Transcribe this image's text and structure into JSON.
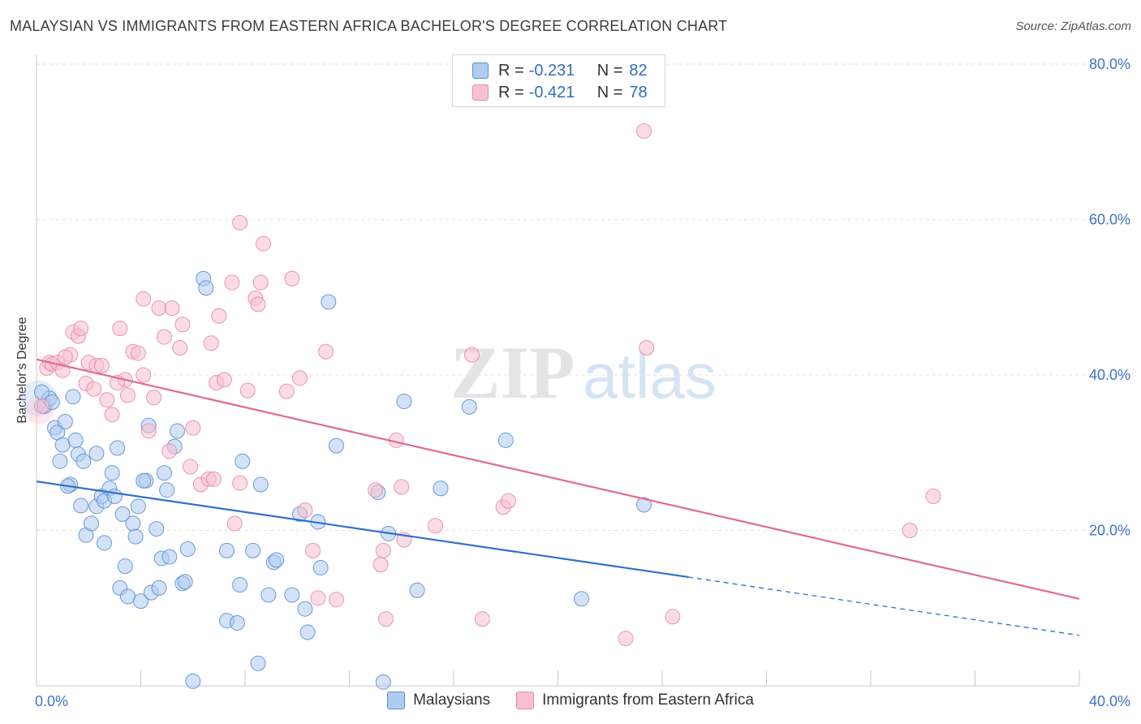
{
  "title": "MALAYSIAN VS IMMIGRANTS FROM EASTERN AFRICA BACHELOR'S DEGREE CORRELATION CHART",
  "source": "Source: ZipAtlas.com",
  "watermark": {
    "zip": "ZIP",
    "atlas": "atlas"
  },
  "colors": {
    "blue_fill": "#aecbf0",
    "blue_stroke": "#5b8fd6",
    "blue_line": "#2f6fd0",
    "pink_fill": "#f7c0d0",
    "pink_stroke": "#e88aa8",
    "pink_line": "#e06a93",
    "tick_label": "#3d74c6",
    "grid": "#e3e3e3"
  },
  "legend": {
    "rows": [
      {
        "r_label": "R =",
        "r_value": "-0.231",
        "n_label": "N =",
        "n_value": "82"
      },
      {
        "r_label": "R =",
        "r_value": "-0.421",
        "n_label": "N =",
        "n_value": "78"
      }
    ],
    "series_names": [
      "Malaysians",
      "Immigrants from Eastern Africa"
    ]
  },
  "chart_data": {
    "type": "scatter",
    "title": "MALAYSIAN VS IMMIGRANTS FROM EASTERN AFRICA BACHELOR'S DEGREE CORRELATION CHART",
    "xlabel": "",
    "ylabel": "Bachelor's Degree",
    "xlim": [
      0,
      40
    ],
    "ylim": [
      0,
      80
    ],
    "x_tick_labels": [
      "0.0%",
      "40.0%"
    ],
    "y_tick_values": [
      20,
      40,
      60,
      80
    ],
    "y_tick_labels": [
      "20.0%",
      "40.0%",
      "60.0%",
      "80.0%"
    ],
    "grid": true,
    "legend_position": "top-center",
    "series": [
      {
        "name": "Malaysians",
        "r": -0.231,
        "n": 82,
        "trend": {
          "x": [
            0,
            25,
            40
          ],
          "y": [
            26.3,
            14.0,
            6.5
          ],
          "solid_until": 25
        },
        "points": [
          [
            0.3,
            36.0
          ],
          [
            0.5,
            37.0
          ],
          [
            0.6,
            36.5
          ],
          [
            0.7,
            33.2
          ],
          [
            0.8,
            32.6
          ],
          [
            0.9,
            28.9
          ],
          [
            1.0,
            31.0
          ],
          [
            1.1,
            34.0
          ],
          [
            1.3,
            25.9
          ],
          [
            1.4,
            37.2
          ],
          [
            1.5,
            31.6
          ],
          [
            1.6,
            29.8
          ],
          [
            1.7,
            23.2
          ],
          [
            1.8,
            28.9
          ],
          [
            1.9,
            19.4
          ],
          [
            2.1,
            20.9
          ],
          [
            2.3,
            23.1
          ],
          [
            2.3,
            29.9
          ],
          [
            2.5,
            24.4
          ],
          [
            2.6,
            18.4
          ],
          [
            2.6,
            23.8
          ],
          [
            2.8,
            25.4
          ],
          [
            2.9,
            27.4
          ],
          [
            3.0,
            24.4
          ],
          [
            3.1,
            30.6
          ],
          [
            3.2,
            12.6
          ],
          [
            3.3,
            22.1
          ],
          [
            3.5,
            11.5
          ],
          [
            3.4,
            15.4
          ],
          [
            3.7,
            20.9
          ],
          [
            3.8,
            19.2
          ],
          [
            3.9,
            23.1
          ],
          [
            4.0,
            10.9
          ],
          [
            4.2,
            26.4
          ],
          [
            4.3,
            33.5
          ],
          [
            4.4,
            12.0
          ],
          [
            4.6,
            20.2
          ],
          [
            4.7,
            12.6
          ],
          [
            4.8,
            16.4
          ],
          [
            4.9,
            27.4
          ],
          [
            5.0,
            25.2
          ],
          [
            5.1,
            16.6
          ],
          [
            5.3,
            30.8
          ],
          [
            5.4,
            32.8
          ],
          [
            5.6,
            13.2
          ],
          [
            5.7,
            13.4
          ],
          [
            5.8,
            17.6
          ],
          [
            6.0,
            0.6
          ],
          [
            6.4,
            52.4
          ],
          [
            6.5,
            51.2
          ],
          [
            7.3,
            17.4
          ],
          [
            7.3,
            8.4
          ],
          [
            7.7,
            8.1
          ],
          [
            7.8,
            13.0
          ],
          [
            7.9,
            28.9
          ],
          [
            8.3,
            17.4
          ],
          [
            8.5,
            2.9
          ],
          [
            8.6,
            25.9
          ],
          [
            8.9,
            11.7
          ],
          [
            9.1,
            15.9
          ],
          [
            9.2,
            16.2
          ],
          [
            9.8,
            11.7
          ],
          [
            10.1,
            22.1
          ],
          [
            10.3,
            9.9
          ],
          [
            10.4,
            6.9
          ],
          [
            10.8,
            21.1
          ],
          [
            10.9,
            15.2
          ],
          [
            11.2,
            49.4
          ],
          [
            11.5,
            30.9
          ],
          [
            13.3,
            0.5
          ],
          [
            13.1,
            24.9
          ],
          [
            13.5,
            19.6
          ],
          [
            14.1,
            36.6
          ],
          [
            14.6,
            12.3
          ],
          [
            15.5,
            25.4
          ],
          [
            16.6,
            35.9
          ],
          [
            18.0,
            31.6
          ],
          [
            20.9,
            11.2
          ],
          [
            23.3,
            23.3
          ],
          [
            1.2,
            25.7
          ],
          [
            0.2,
            37.8
          ],
          [
            4.1,
            26.4
          ]
        ]
      },
      {
        "name": "Immigrants from Eastern Africa",
        "r": -0.421,
        "n": 78,
        "trend": {
          "x": [
            0,
            40
          ],
          "y": [
            42.0,
            11.2
          ],
          "solid_until": 40
        },
        "points": [
          [
            0.2,
            36.0
          ],
          [
            0.4,
            40.9
          ],
          [
            0.5,
            41.6
          ],
          [
            0.6,
            41.4
          ],
          [
            0.8,
            41.6
          ],
          [
            1.0,
            40.6
          ],
          [
            1.3,
            42.6
          ],
          [
            1.4,
            45.5
          ],
          [
            1.6,
            45.0
          ],
          [
            1.7,
            46.0
          ],
          [
            1.9,
            38.9
          ],
          [
            2.0,
            41.6
          ],
          [
            2.2,
            38.2
          ],
          [
            2.3,
            41.2
          ],
          [
            2.5,
            41.2
          ],
          [
            2.7,
            36.8
          ],
          [
            2.9,
            34.9
          ],
          [
            3.2,
            46.0
          ],
          [
            3.4,
            39.4
          ],
          [
            3.5,
            37.4
          ],
          [
            3.7,
            43.0
          ],
          [
            3.9,
            42.8
          ],
          [
            4.1,
            40.0
          ],
          [
            4.1,
            49.8
          ],
          [
            4.3,
            32.8
          ],
          [
            4.5,
            37.1
          ],
          [
            4.7,
            48.6
          ],
          [
            4.9,
            44.9
          ],
          [
            5.1,
            30.2
          ],
          [
            5.2,
            48.6
          ],
          [
            5.5,
            43.5
          ],
          [
            5.6,
            46.5
          ],
          [
            5.9,
            28.2
          ],
          [
            6.0,
            33.2
          ],
          [
            6.3,
            25.9
          ],
          [
            6.6,
            26.6
          ],
          [
            6.7,
            44.1
          ],
          [
            6.9,
            39.0
          ],
          [
            7.0,
            47.6
          ],
          [
            7.2,
            39.4
          ],
          [
            7.5,
            51.9
          ],
          [
            7.6,
            20.9
          ],
          [
            7.8,
            26.1
          ],
          [
            7.8,
            59.6
          ],
          [
            8.1,
            38.0
          ],
          [
            8.4,
            49.9
          ],
          [
            8.5,
            49.1
          ],
          [
            8.6,
            51.9
          ],
          [
            8.7,
            56.9
          ],
          [
            9.6,
            37.9
          ],
          [
            9.8,
            52.4
          ],
          [
            10.1,
            39.6
          ],
          [
            10.3,
            22.6
          ],
          [
            10.6,
            17.4
          ],
          [
            10.8,
            11.3
          ],
          [
            11.1,
            43.0
          ],
          [
            11.5,
            11.1
          ],
          [
            13.0,
            25.2
          ],
          [
            13.2,
            15.6
          ],
          [
            13.3,
            17.4
          ],
          [
            13.4,
            8.6
          ],
          [
            13.8,
            31.6
          ],
          [
            14.0,
            25.6
          ],
          [
            14.1,
            18.8
          ],
          [
            15.3,
            20.6
          ],
          [
            16.7,
            42.6
          ],
          [
            17.1,
            8.6
          ],
          [
            17.9,
            23.0
          ],
          [
            18.1,
            23.8
          ],
          [
            22.6,
            6.1
          ],
          [
            23.3,
            71.4
          ],
          [
            23.4,
            43.5
          ],
          [
            24.4,
            8.9
          ],
          [
            33.5,
            20.0
          ],
          [
            34.4,
            24.4
          ],
          [
            1.1,
            42.3
          ],
          [
            3.1,
            39.0
          ],
          [
            6.8,
            26.6
          ]
        ]
      }
    ]
  }
}
